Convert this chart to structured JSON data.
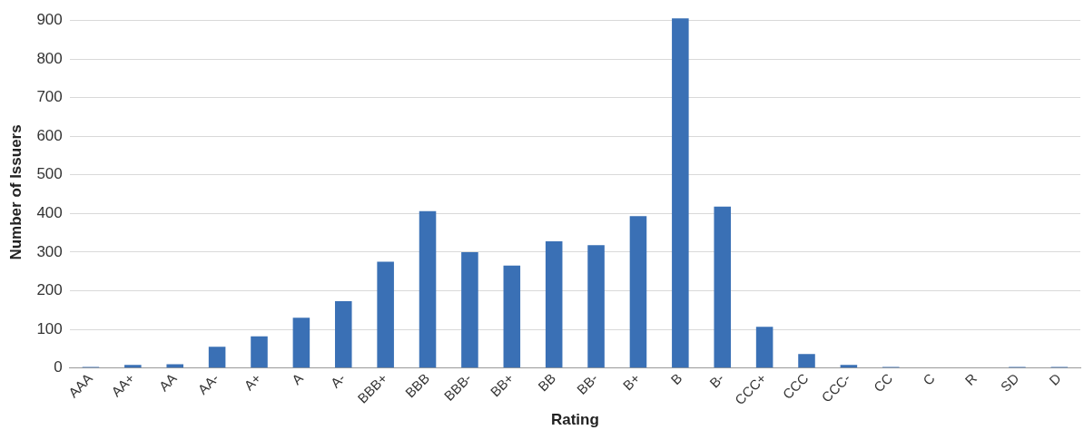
{
  "chart_data": {
    "type": "bar",
    "xlabel": "Rating",
    "ylabel": "Number of Issuers",
    "categories": [
      "AAA",
      "AA+",
      "AA",
      "AA-",
      "A+",
      "A",
      "A-",
      "BBB+",
      "BBB",
      "BBB-",
      "BB+",
      "BB",
      "BB-",
      "B+",
      "B",
      "B-",
      "CCC+",
      "CCC",
      "CCC-",
      "CC",
      "C",
      "R",
      "SD",
      "D"
    ],
    "values": [
      3,
      8,
      10,
      55,
      82,
      130,
      173,
      275,
      406,
      300,
      265,
      328,
      318,
      393,
      905,
      418,
      107,
      36,
      8,
      3,
      0,
      0,
      3,
      3
    ],
    "color": "#3a70b5",
    "ylim": [
      0,
      910
    ],
    "yticks": [
      0,
      100,
      200,
      300,
      400,
      500,
      600,
      700,
      800,
      900
    ],
    "grid": "y",
    "legend": false
  }
}
